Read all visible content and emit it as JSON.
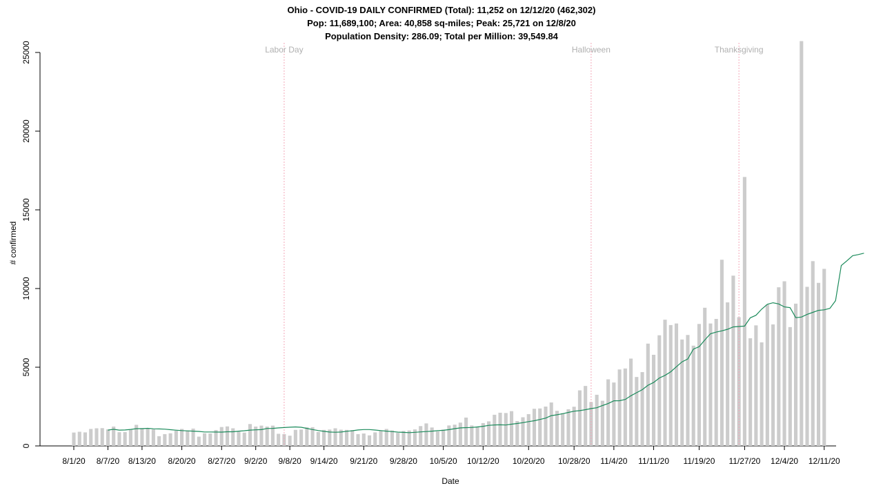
{
  "titles": {
    "line1": "Ohio - COVID-19 DAILY CONFIRMED (Total): 11,252 on 12/12/20 (462,302)",
    "line2": "Pop: 11,689,100; Area: 40,858 sq-miles; Peak: 25,721 on 12/8/20",
    "line3": "Population Density: 286.09; Total per Million: 39,549.84"
  },
  "chart_data": {
    "type": "bar",
    "xlabel": "Date",
    "ylabel": "# confirmed",
    "ylim": [
      0,
      25000
    ],
    "yticks": [
      0,
      5000,
      10000,
      15000,
      20000,
      25000
    ],
    "x_start": "8/1/20",
    "x_end": "12/12/20",
    "xtick_labels": [
      "8/1/20",
      "8/7/20",
      "8/13/20",
      "8/20/20",
      "8/27/20",
      "9/2/20",
      "9/8/20",
      "9/14/20",
      "9/21/20",
      "9/28/20",
      "10/5/20",
      "10/12/20",
      "10/20/20",
      "10/28/20",
      "11/4/20",
      "11/11/20",
      "11/19/20",
      "11/27/20",
      "12/4/20",
      "12/11/20"
    ],
    "grid": false,
    "colors": {
      "bars": "#cccccc",
      "moving_average": "#1a8a5a",
      "event_lines": "#f4a6b8",
      "event_text": "#b0b0b0"
    },
    "events": [
      {
        "label": "Labor Day",
        "date": "9/7/20"
      },
      {
        "label": "Halloween",
        "date": "10/31/20"
      },
      {
        "label": "Thanksgiving",
        "date": "11/26/20"
      }
    ],
    "series": [
      {
        "name": "daily",
        "values": [
          850,
          900,
          860,
          1080,
          1120,
          1130,
          1050,
          1230,
          870,
          880,
          1020,
          1340,
          1130,
          1120,
          1050,
          620,
          750,
          800,
          970,
          1080,
          980,
          1100,
          590,
          800,
          790,
          1010,
          1200,
          1240,
          1120,
          910,
          850,
          1390,
          1230,
          1290,
          1230,
          1290,
          770,
          750,
          650,
          1020,
          1040,
          1180,
          1190,
          890,
          1020,
          1040,
          1120,
          1030,
          1020,
          1000,
          750,
          790,
          670,
          860,
          970,
          1080,
          980,
          830,
          950,
          980,
          1050,
          1260,
          1430,
          1170,
          920,
          1040,
          1300,
          1350,
          1480,
          1800,
          1300,
          1210,
          1450,
          1560,
          1980,
          2110,
          2090,
          2210,
          1580,
          1820,
          2020,
          2360,
          2380,
          2500,
          2760,
          2230,
          2080,
          2330,
          2490,
          3530,
          3810,
          2790,
          3250,
          2870,
          4230,
          4030,
          4860,
          4920,
          5550,
          4380,
          4690,
          6500,
          5790,
          7030,
          8020,
          7680,
          7780,
          6760,
          7050,
          6370,
          7750,
          8780,
          7780,
          8070,
          11830,
          9120,
          10820,
          8180,
          17090,
          6840,
          7660,
          6580,
          8980,
          7720,
          10080,
          10460,
          7550,
          9040,
          25721,
          10110,
          11740,
          10360,
          11252
        ]
      },
      {
        "name": "moving_average",
        "start_date": "8/7/20",
        "values": [
          1006,
          1057,
          1005,
          1013,
          1047,
          1097,
          1096,
          1117,
          1086,
          1078,
          1064,
          1029,
          999,
          972,
          956,
          939,
          921,
          888,
          885,
          882,
          879,
          898,
          897,
          937,
          965,
          1003,
          1020,
          1037,
          1109,
          1112,
          1143,
          1167,
          1187,
          1204,
          1183,
          1116,
          1040,
          979,
          926,
          882,
          869,
          880,
          928,
          966,
          1011,
          1041,
          1041,
          1007,
          974,
          940,
          911,
          877,
          859,
          844,
          862,
          889,
          912,
          938,
          968,
          991,
          1037,
          1096,
          1143,
          1161,
          1173,
          1208,
          1246,
          1307,
          1334,
          1343,
          1329,
          1381,
          1426,
          1476,
          1544,
          1601,
          1678,
          1769,
          1924,
          1977,
          2049,
          2126,
          2204,
          2242,
          2303,
          2374,
          2426,
          2564,
          2692,
          2869,
          2871,
          2950,
          3188,
          3383,
          3575,
          3857,
          4029,
          4316,
          4484,
          4710,
          5029,
          5344,
          5528,
          6153,
          6302,
          6733,
          7126,
          7231,
          7313,
          7413,
          7560,
          7587,
          7612,
          8140,
          8302,
          8687,
          8999,
          9095,
          9023,
          8834,
          8783,
          8150,
          8187,
          8360,
          8485,
          8612,
          8648,
          8740,
          9230,
          11462,
          11761,
          12088,
          12160,
          12246
        ]
      }
    ]
  }
}
